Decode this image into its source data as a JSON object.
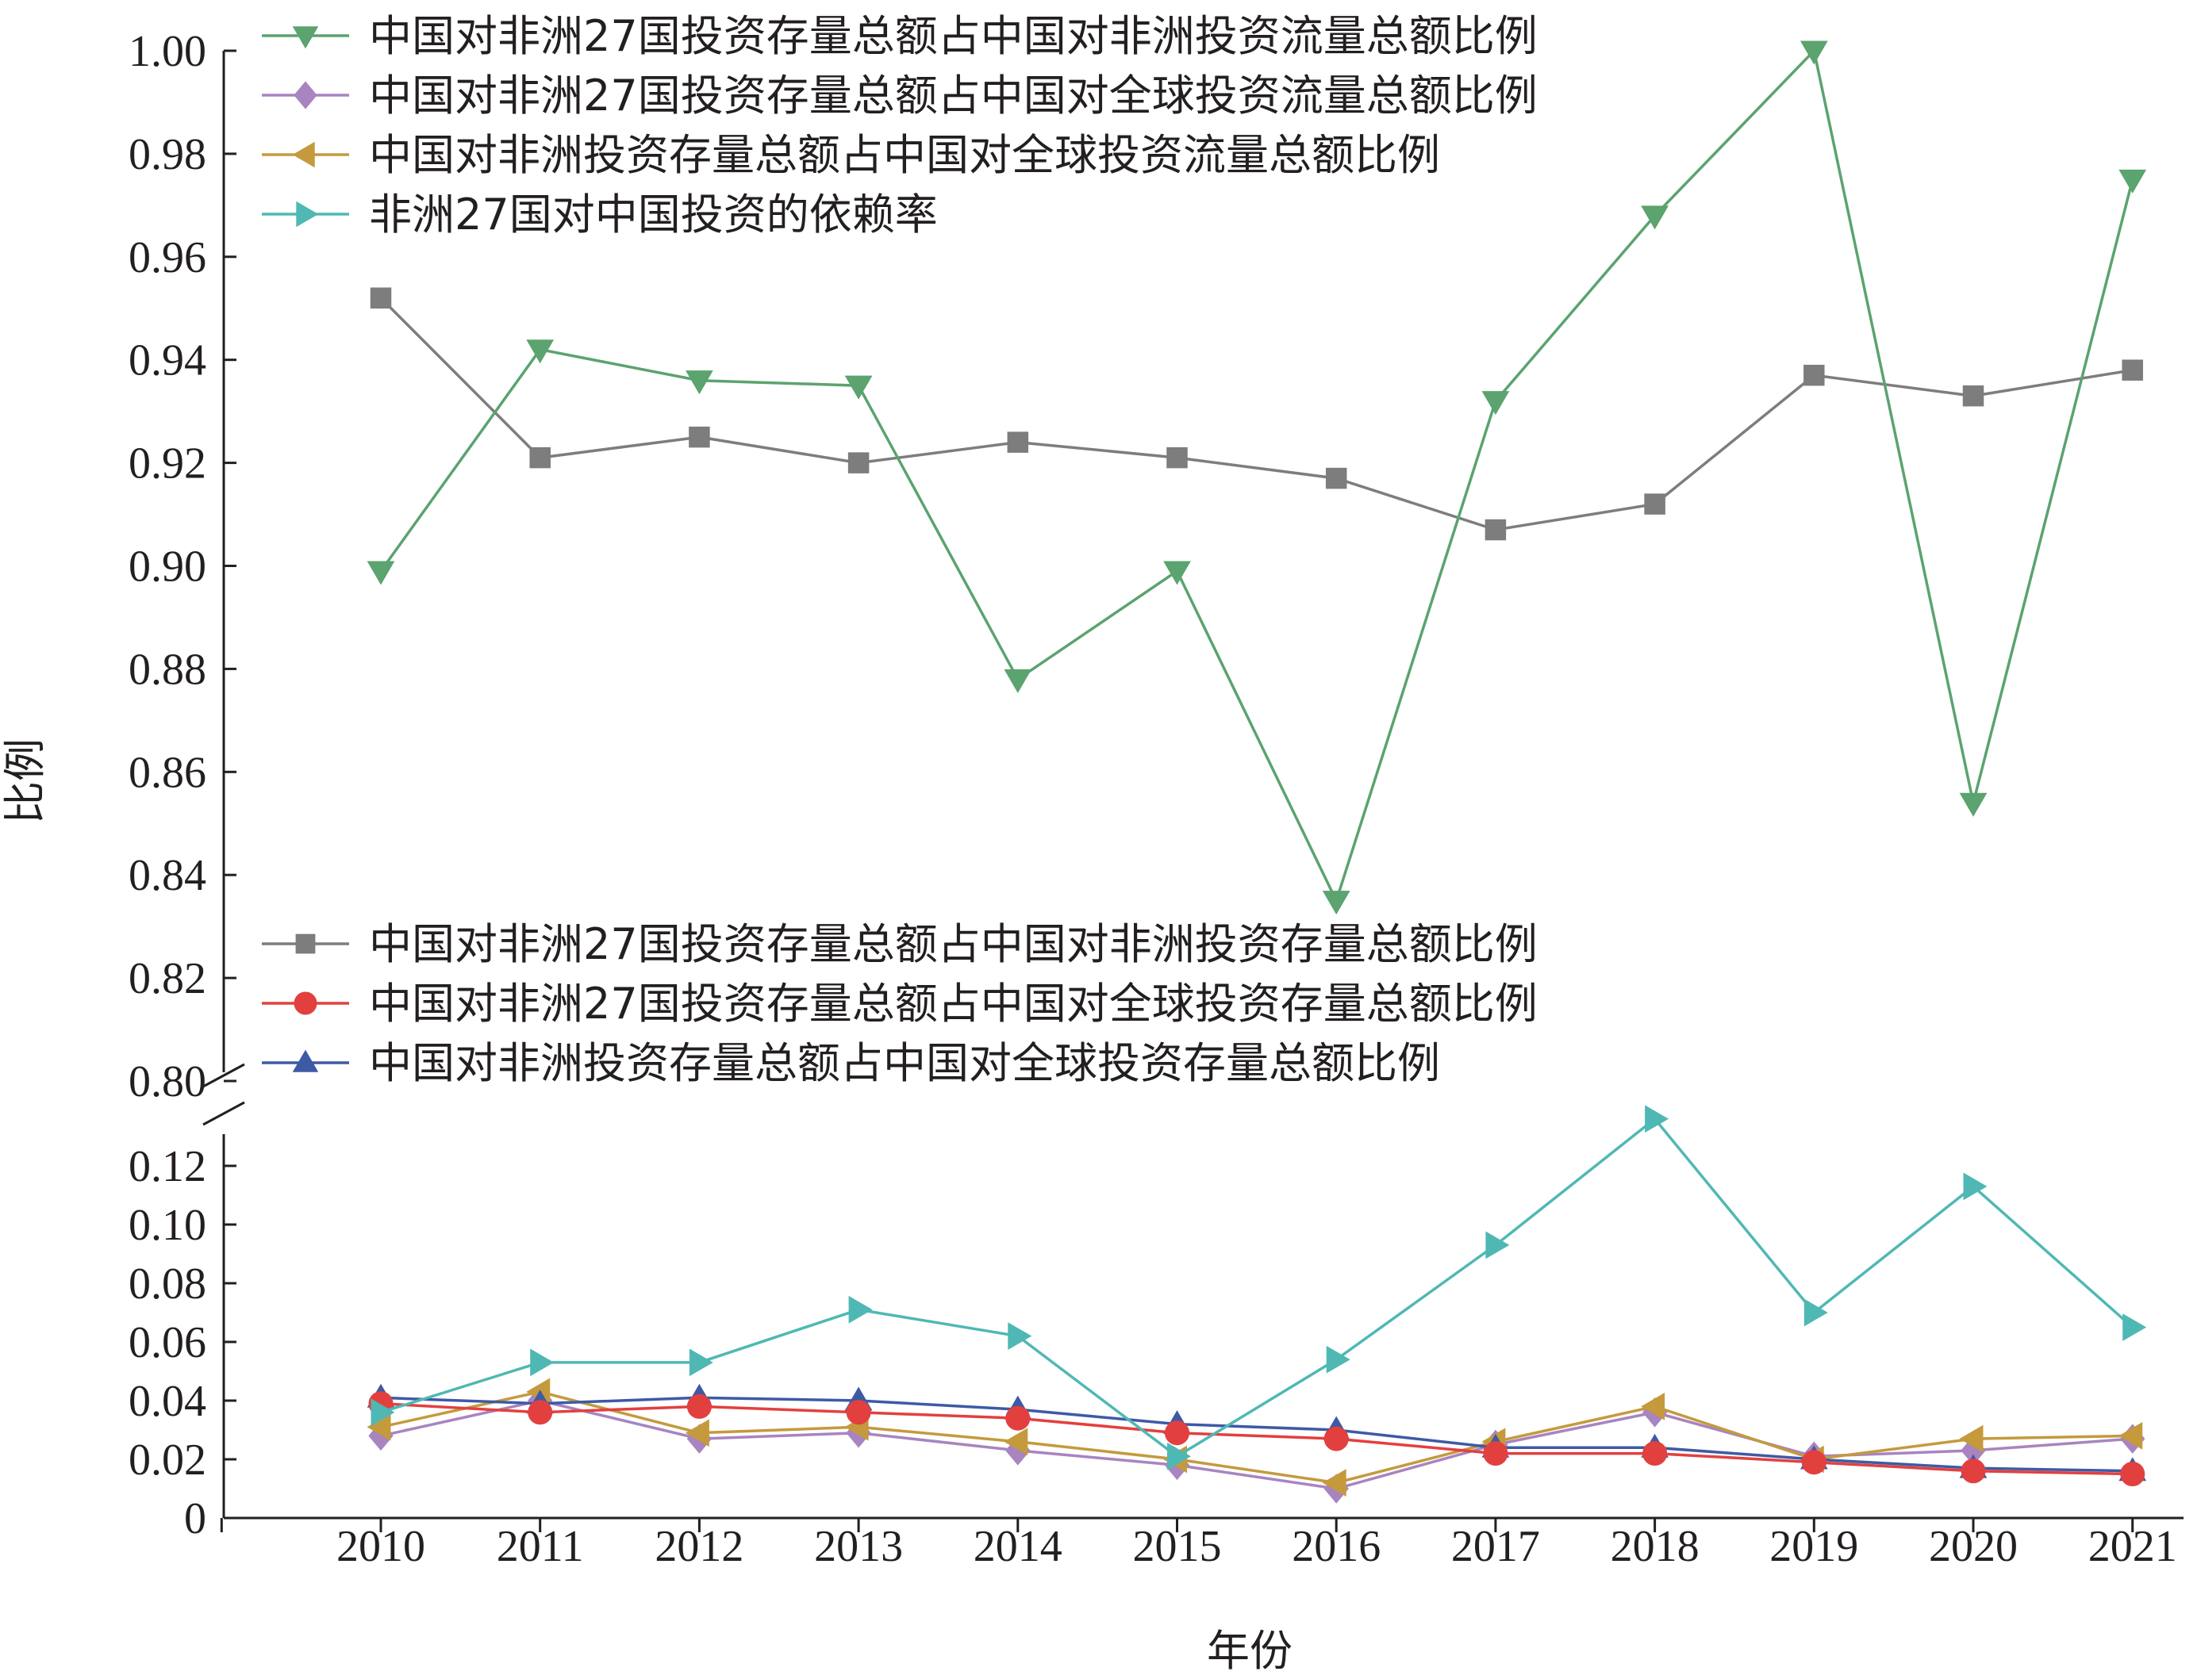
{
  "chart_data": {
    "type": "line",
    "xlabel": "年份",
    "ylabel": "比例",
    "categories": [
      "2010",
      "2011",
      "2012",
      "2013",
      "2014",
      "2015",
      "2016",
      "2017",
      "2018",
      "2019",
      "2020",
      "2021"
    ],
    "y_axis_broken": true,
    "upper_ylim": [
      0.8,
      1.0
    ],
    "upper_yticks": [
      "0.80",
      "0.82",
      "0.84",
      "0.86",
      "0.88",
      "0.90",
      "0.92",
      "0.94",
      "0.96",
      "0.98",
      "1.00"
    ],
    "lower_ylim": [
      0,
      0.13
    ],
    "lower_yticks": [
      "0",
      "0.02",
      "0.04",
      "0.06",
      "0.08",
      "0.10",
      "0.12"
    ],
    "legend_groups": [
      {
        "placement": "top-left",
        "series_indices": [
          0,
          1,
          2,
          3
        ]
      },
      {
        "placement": "center-left",
        "series_indices": [
          4,
          5,
          6
        ]
      }
    ],
    "series": [
      {
        "name": "中国对非洲27国投资存量总额占中国对非洲投资流量总额比例",
        "panel": "upper",
        "color": "#5ba36f",
        "marker": "triangle-down",
        "values": [
          0.899,
          0.942,
          0.936,
          0.935,
          0.878,
          0.899,
          0.835,
          0.932,
          0.968,
          1.0,
          0.854,
          0.975
        ]
      },
      {
        "name": "中国对非洲27国投资存量总额占中国对全球投资流量总额比例",
        "panel": "lower",
        "color": "#a884c0",
        "marker": "diamond",
        "values": [
          0.028,
          0.04,
          0.027,
          0.029,
          0.023,
          0.018,
          0.01,
          0.025,
          0.036,
          0.021,
          0.023,
          0.027
        ]
      },
      {
        "name": "中国对非洲投资存量总额占中国对全球投资流量总额比例",
        "panel": "lower",
        "color": "#c49a3c",
        "marker": "triangle-left",
        "values": [
          0.031,
          0.043,
          0.029,
          0.031,
          0.026,
          0.02,
          0.012,
          0.026,
          0.038,
          0.02,
          0.027,
          0.028
        ]
      },
      {
        "name": "非洲27国对中国投资的依赖率",
        "panel": "lower",
        "color": "#4fb8b4",
        "marker": "triangle-right",
        "values": [
          0.036,
          0.053,
          0.053,
          0.071,
          0.062,
          0.021,
          0.054,
          0.093,
          0.136,
          0.07,
          0.113,
          0.065
        ]
      },
      {
        "name": "中国对非洲27国投资存量总额占中国对非洲投资存量总额比例",
        "panel": "upper",
        "color": "#7d7d7d",
        "marker": "square",
        "values": [
          0.952,
          0.921,
          0.925,
          0.92,
          0.924,
          0.921,
          0.917,
          0.907,
          0.912,
          0.937,
          0.933,
          0.938
        ]
      },
      {
        "name": "中国对非洲27国投资存量总额占中国对全球投资存量总额比例",
        "panel": "lower",
        "color": "#e2403f",
        "marker": "circle",
        "values": [
          0.039,
          0.036,
          0.038,
          0.036,
          0.034,
          0.029,
          0.027,
          0.022,
          0.022,
          0.019,
          0.016,
          0.015
        ]
      },
      {
        "name": "中国对非洲投资存量总额占中国对全球投资存量总额比例",
        "panel": "lower",
        "color": "#3e5aa5",
        "marker": "triangle-up",
        "values": [
          0.041,
          0.039,
          0.041,
          0.04,
          0.037,
          0.032,
          0.03,
          0.024,
          0.024,
          0.02,
          0.017,
          0.016
        ]
      }
    ]
  }
}
